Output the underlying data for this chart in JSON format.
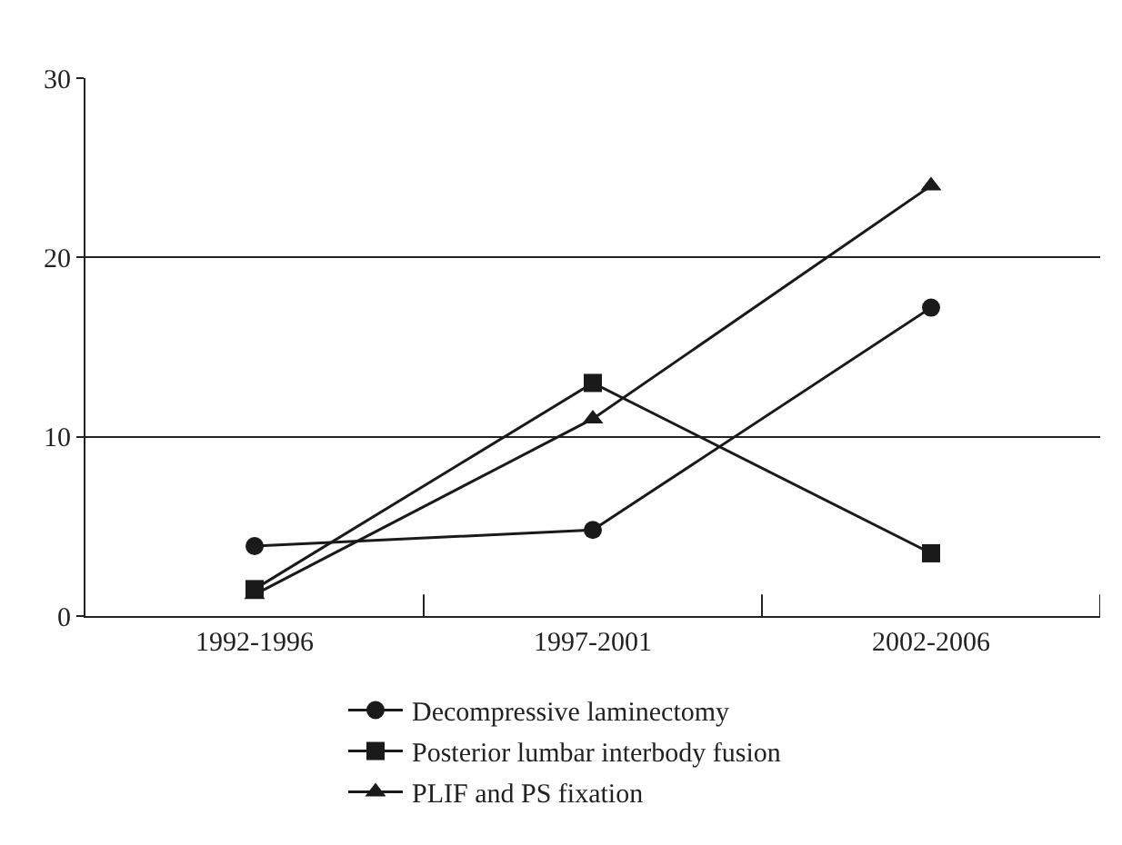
{
  "chart_data": {
    "type": "line",
    "categories": [
      "1992-1996",
      "1997-2001",
      "2002-2006"
    ],
    "series": [
      {
        "name": "Decompressive laminectomy",
        "color": "#1a1a1a",
        "marker": "circle",
        "values": [
          3.9,
          4.8,
          17.2
        ]
      },
      {
        "name": "Posterior lumbar interbody fusion",
        "color": "#1a1a1a",
        "marker": "square",
        "values": [
          1.5,
          13,
          3.5
        ]
      },
      {
        "name": "PLIF and PS fixation",
        "color": "#1a1a1a",
        "marker": "triangle",
        "values": [
          1.2,
          11,
          24
        ]
      }
    ],
    "ylim": [
      0,
      30
    ],
    "yticks": [
      0,
      10,
      20,
      30
    ],
    "grid": "y",
    "legend": "bottom"
  }
}
